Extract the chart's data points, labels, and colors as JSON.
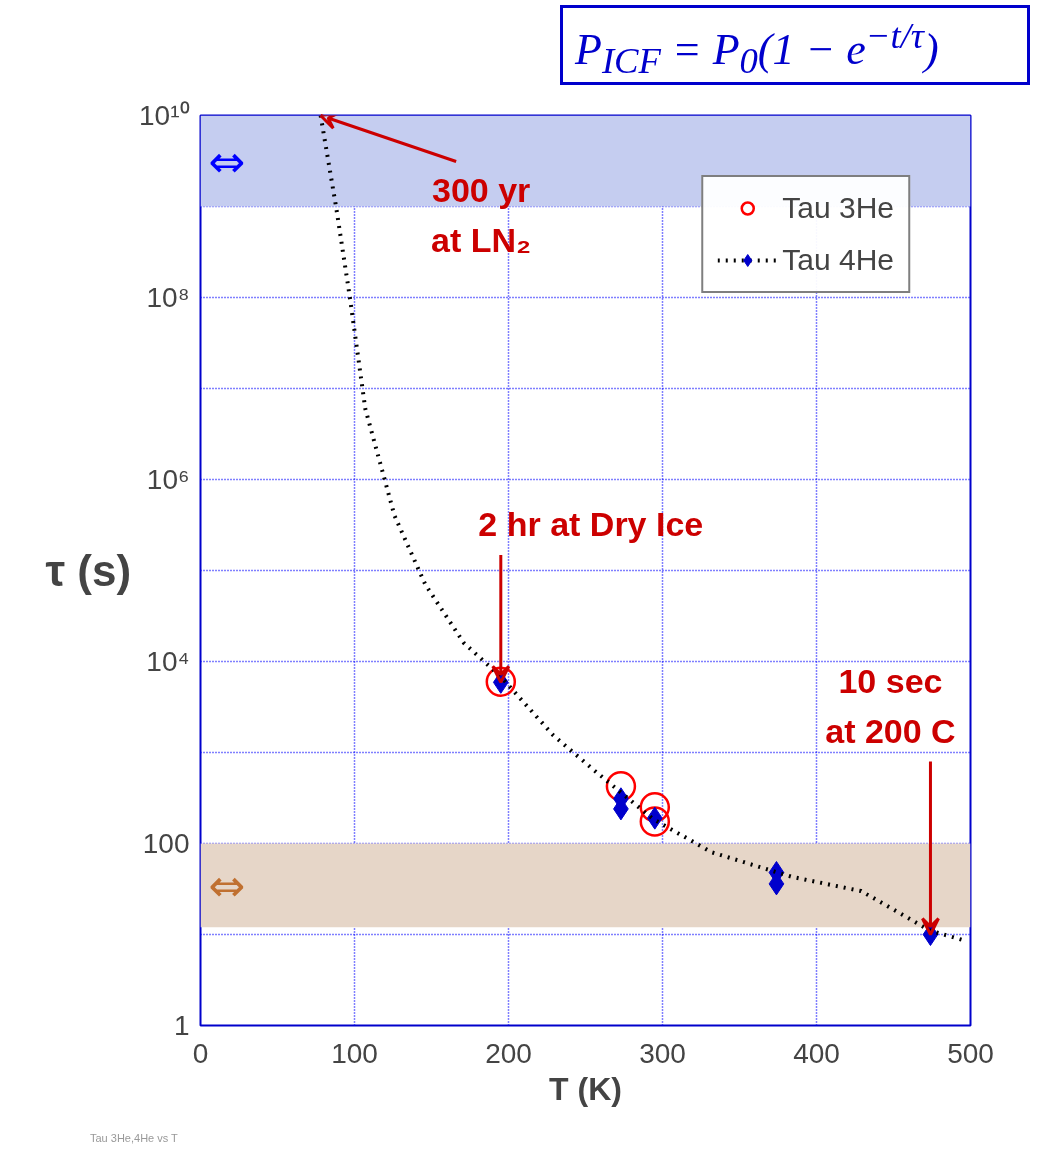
{
  "chart_data": {
    "type": "scatter",
    "xlabel": "T (K)",
    "ylabel": "τ (s)",
    "xlim": [
      0,
      500
    ],
    "xticks": [
      0,
      100,
      200,
      300,
      400,
      500
    ],
    "ylim": [
      1,
      10000000000
    ],
    "log": "y",
    "yticks": [
      {
        "value": 1,
        "label": "1"
      },
      {
        "value": 10,
        "label": null
      },
      {
        "value": 100,
        "label": "100"
      },
      {
        "value": 1000,
        "label": null
      },
      {
        "value": 10000,
        "label": "10⁴"
      },
      {
        "value": 100000,
        "label": null
      },
      {
        "value": 1000000,
        "label": "10⁶"
      },
      {
        "value": 10000000,
        "label": null
      },
      {
        "value": 100000000,
        "label": "10⁸"
      },
      {
        "value": 1000000000,
        "label": null
      },
      {
        "value": 10000000000,
        "label": "10¹⁰"
      }
    ],
    "grid": true,
    "legend": "top right",
    "series": [
      {
        "name": "Tau 3He",
        "color": "#ff0000",
        "marker": "circle",
        "x": [
          195,
          273,
          295,
          295
        ],
        "values": [
          6000,
          425,
          250,
          175
        ]
      },
      {
        "name": "Tau 4He",
        "color": "#0000cc",
        "marker": "diamond",
        "x": [
          195,
          273,
          273,
          295,
          374,
          374,
          474
        ],
        "values": [
          5900,
          310,
          240,
          190,
          48,
          36,
          10
        ]
      },
      {
        "type": "line",
        "color": "#000000",
        "line_style": "dotted",
        "marker": "none",
        "x": [
          78,
          81,
          88,
          97,
          107,
          126,
          146,
          171,
          195,
          229,
          255,
          294,
          332,
          384,
          429,
          474,
          497
        ],
        "values": [
          10000000000,
          5000000000,
          1000000000,
          100000000,
          6000000,
          400000,
          70000,
          16000,
          6800,
          1550,
          650,
          185,
          80,
          43,
          30,
          11,
          8.5
        ]
      }
    ],
    "bands": [
      {
        "axis": "y",
        "from": 1000000000,
        "to": 10000000000,
        "label": "⇔",
        "color": "#c5cdf0"
      },
      {
        "axis": "y",
        "from": 12,
        "to": 100,
        "label": "⇔",
        "color": "#e6d6c8"
      }
    ],
    "annotations": [
      {
        "text": "300 yr\nat LN₂",
        "x": 78,
        "y": 10000000000
      },
      {
        "text": "2 hr at Dry Ice",
        "x": 195,
        "y": 5900
      },
      {
        "text": "10 sec\nat 200 C",
        "x": 474,
        "y": 10
      },
      "P$_{ICF}$ = P$_{0}$(1 − e$^{−t/τ}$)",
      "Tau 3He,4He vs T"
    ]
  }
}
